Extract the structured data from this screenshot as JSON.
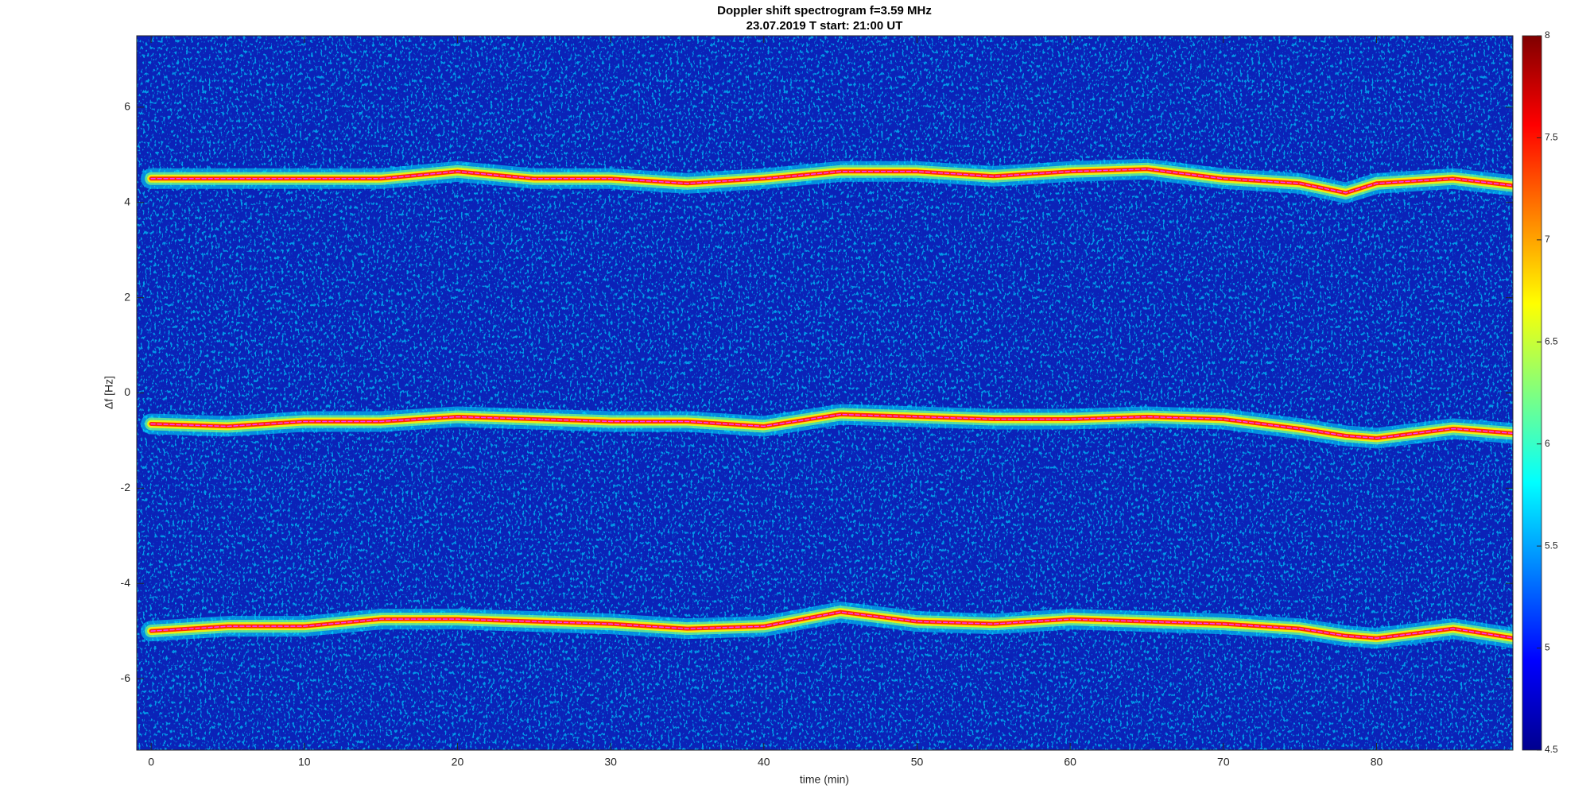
{
  "chart_data": {
    "type": "spectrogram",
    "title": "Doppler shift spectrogram f=3.59 MHz",
    "subtitle": "23.07.2019   T start: 21:00 UT",
    "x_label": "time (min)",
    "y_label": "Δf [Hz]",
    "x": [
      0,
      5,
      10,
      15,
      20,
      25,
      30,
      35,
      40,
      45,
      50,
      55,
      60,
      65,
      70,
      75,
      78,
      80,
      85,
      89
    ],
    "series": [
      {
        "values": [
          4.5,
          4.5,
          4.5,
          4.5,
          4.65,
          4.5,
          4.5,
          4.4,
          4.5,
          4.65,
          4.65,
          4.55,
          4.65,
          4.7,
          4.5,
          4.4,
          4.2,
          4.4,
          4.5,
          4.35
        ]
      },
      {
        "values": [
          -0.65,
          -0.7,
          -0.6,
          -0.6,
          -0.5,
          -0.55,
          -0.6,
          -0.6,
          -0.7,
          -0.45,
          -0.5,
          -0.55,
          -0.55,
          -0.5,
          -0.55,
          -0.75,
          -0.9,
          -0.95,
          -0.75,
          -0.85
        ]
      },
      {
        "values": [
          -5.0,
          -4.9,
          -4.9,
          -4.75,
          -4.75,
          -4.8,
          -4.85,
          -4.95,
          -4.9,
          -4.6,
          -4.8,
          -4.85,
          -4.75,
          -4.8,
          -4.85,
          -4.95,
          -5.1,
          -5.15,
          -4.95,
          -5.15
        ]
      }
    ],
    "xlim": [
      -0.94,
      88.9
    ],
    "ylim": [
      -7.5,
      7.5
    ],
    "xticks": [
      0,
      10,
      20,
      30,
      40,
      50,
      60,
      70,
      80
    ],
    "yticks": [
      -6,
      -4,
      -2,
      0,
      2,
      4,
      6
    ],
    "colormap": "jet",
    "clim": [
      4.5,
      8
    ],
    "cticks": [
      4.5,
      5,
      5.5,
      6,
      6.5,
      7,
      7.5,
      8
    ],
    "background": "#0b22b8",
    "trace_color": "#ff33ff"
  }
}
